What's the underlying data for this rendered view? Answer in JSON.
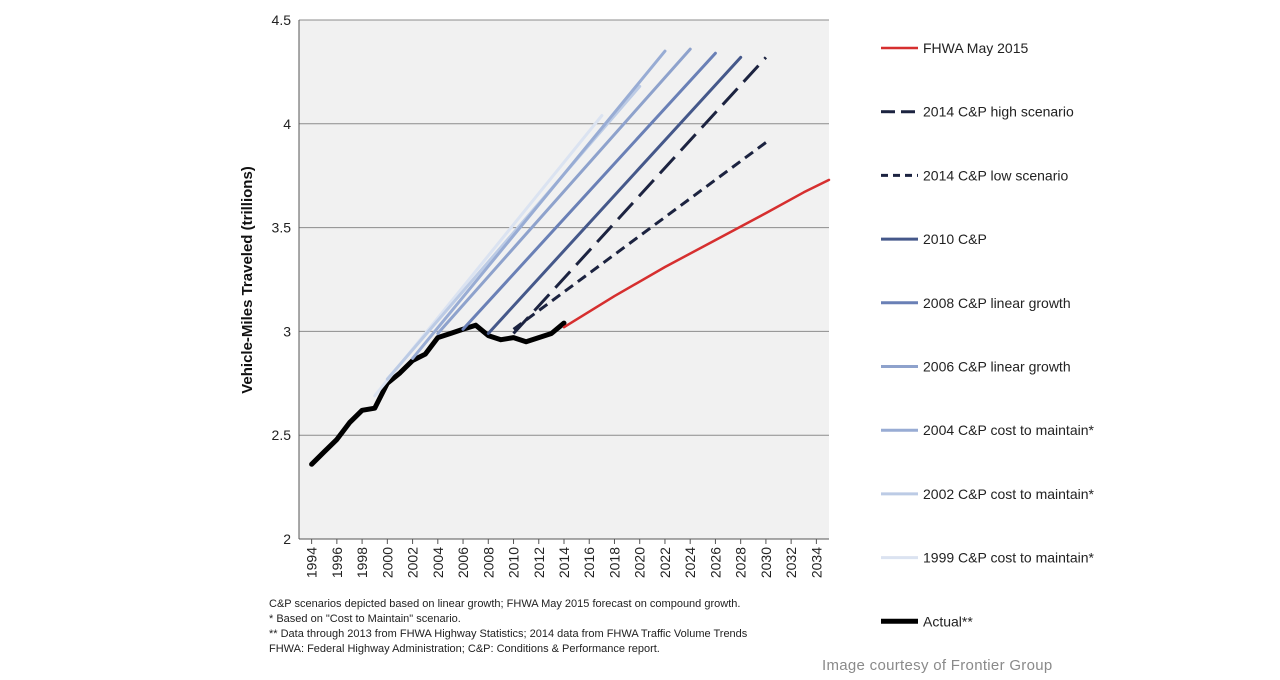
{
  "chart_data": {
    "type": "line",
    "title": "",
    "xlabel": "",
    "ylabel": "Vehicle-Miles Traveled (trillions)",
    "xlim": [
      1993,
      2035
    ],
    "ylim": [
      2,
      4.5
    ],
    "x_ticks": [
      1994,
      1996,
      1998,
      2000,
      2002,
      2004,
      2006,
      2008,
      2010,
      2012,
      2014,
      2016,
      2018,
      2020,
      2022,
      2024,
      2026,
      2028,
      2030,
      2032,
      2034
    ],
    "y_ticks": [
      2,
      2.5,
      3,
      3.5,
      4,
      4.5
    ],
    "y_tick_labels": [
      "2",
      "2.5",
      "3",
      "3.5",
      "4",
      "4.5"
    ],
    "grid": "horizontal",
    "legend_position": "right",
    "series": [
      {
        "name": "FHWA May 2015",
        "color": "#d62f2f",
        "style": "solid",
        "width": 2.5,
        "points": [
          [
            2014,
            3.02
          ],
          [
            2018,
            3.17
          ],
          [
            2022,
            3.31
          ],
          [
            2026,
            3.44
          ],
          [
            2030,
            3.57
          ],
          [
            2033,
            3.67
          ],
          [
            2035,
            3.73
          ]
        ]
      },
      {
        "name": "2014 C&P high scenario",
        "color": "#1c2340",
        "style": "longdash",
        "width": 3,
        "points": [
          [
            2010,
            2.99
          ],
          [
            2030,
            4.32
          ]
        ]
      },
      {
        "name": "2014 C&P low scenario",
        "color": "#1c2340",
        "style": "shortdash",
        "width": 3,
        "points": [
          [
            2010,
            3.01
          ],
          [
            2030,
            3.91
          ]
        ]
      },
      {
        "name": "2010 C&P",
        "color": "#45588a",
        "style": "solid",
        "width": 3,
        "points": [
          [
            2008,
            2.99
          ],
          [
            2028,
            4.32
          ]
        ]
      },
      {
        "name": "2008 C&P linear growth",
        "color": "#6a80b6",
        "style": "solid",
        "width": 3,
        "points": [
          [
            2006,
            3.01
          ],
          [
            2026,
            4.34
          ]
        ]
      },
      {
        "name": "2006 C&P linear growth",
        "color": "#8ea2cc",
        "style": "solid",
        "width": 3,
        "points": [
          [
            2004,
            2.99
          ],
          [
            2024,
            4.36
          ]
        ]
      },
      {
        "name": "2004 C&P cost to maintain*",
        "color": "#98acd4",
        "style": "solid",
        "width": 3,
        "points": [
          [
            2002,
            2.87
          ],
          [
            2022,
            4.35
          ]
        ]
      },
      {
        "name": "2002 C&P cost to maintain*",
        "color": "#bccbe5",
        "style": "solid",
        "width": 3,
        "points": [
          [
            2000,
            2.77
          ],
          [
            2020,
            4.18
          ]
        ]
      },
      {
        "name": "1999 C&P cost to maintain*",
        "color": "#dbe3f1",
        "style": "solid",
        "width": 3,
        "points": [
          [
            1999,
            2.69
          ],
          [
            2017,
            4.04
          ]
        ]
      },
      {
        "name": "Actual**",
        "color": "#000000",
        "style": "solid",
        "width": 5,
        "points": [
          [
            1994,
            2.36
          ],
          [
            1995,
            2.42
          ],
          [
            1996,
            2.48
          ],
          [
            1997,
            2.56
          ],
          [
            1998,
            2.62
          ],
          [
            1999,
            2.63
          ],
          [
            2000,
            2.75
          ],
          [
            2001,
            2.8
          ],
          [
            2002,
            2.86
          ],
          [
            2003,
            2.89
          ],
          [
            2004,
            2.97
          ],
          [
            2005,
            2.99
          ],
          [
            2006,
            3.01
          ],
          [
            2007,
            3.03
          ],
          [
            2008,
            2.98
          ],
          [
            2009,
            2.96
          ],
          [
            2010,
            2.97
          ],
          [
            2011,
            2.95
          ],
          [
            2012,
            2.97
          ],
          [
            2013,
            2.99
          ],
          [
            2014,
            3.04
          ]
        ]
      }
    ]
  },
  "notes": [
    "C&P scenarios depicted based on linear growth; FHWA May 2015 forecast on compound growth.",
    "* Based on \"Cost to Maintain\" scenario.",
    "** Data through 2013 from FHWA Highway Statistics; 2014 data from FHWA Traffic Volume Trends",
    "FHWA: Federal Highway Administration; C&P: Conditions & Performance report."
  ],
  "credit": "Image courtesy of Frontier Group"
}
